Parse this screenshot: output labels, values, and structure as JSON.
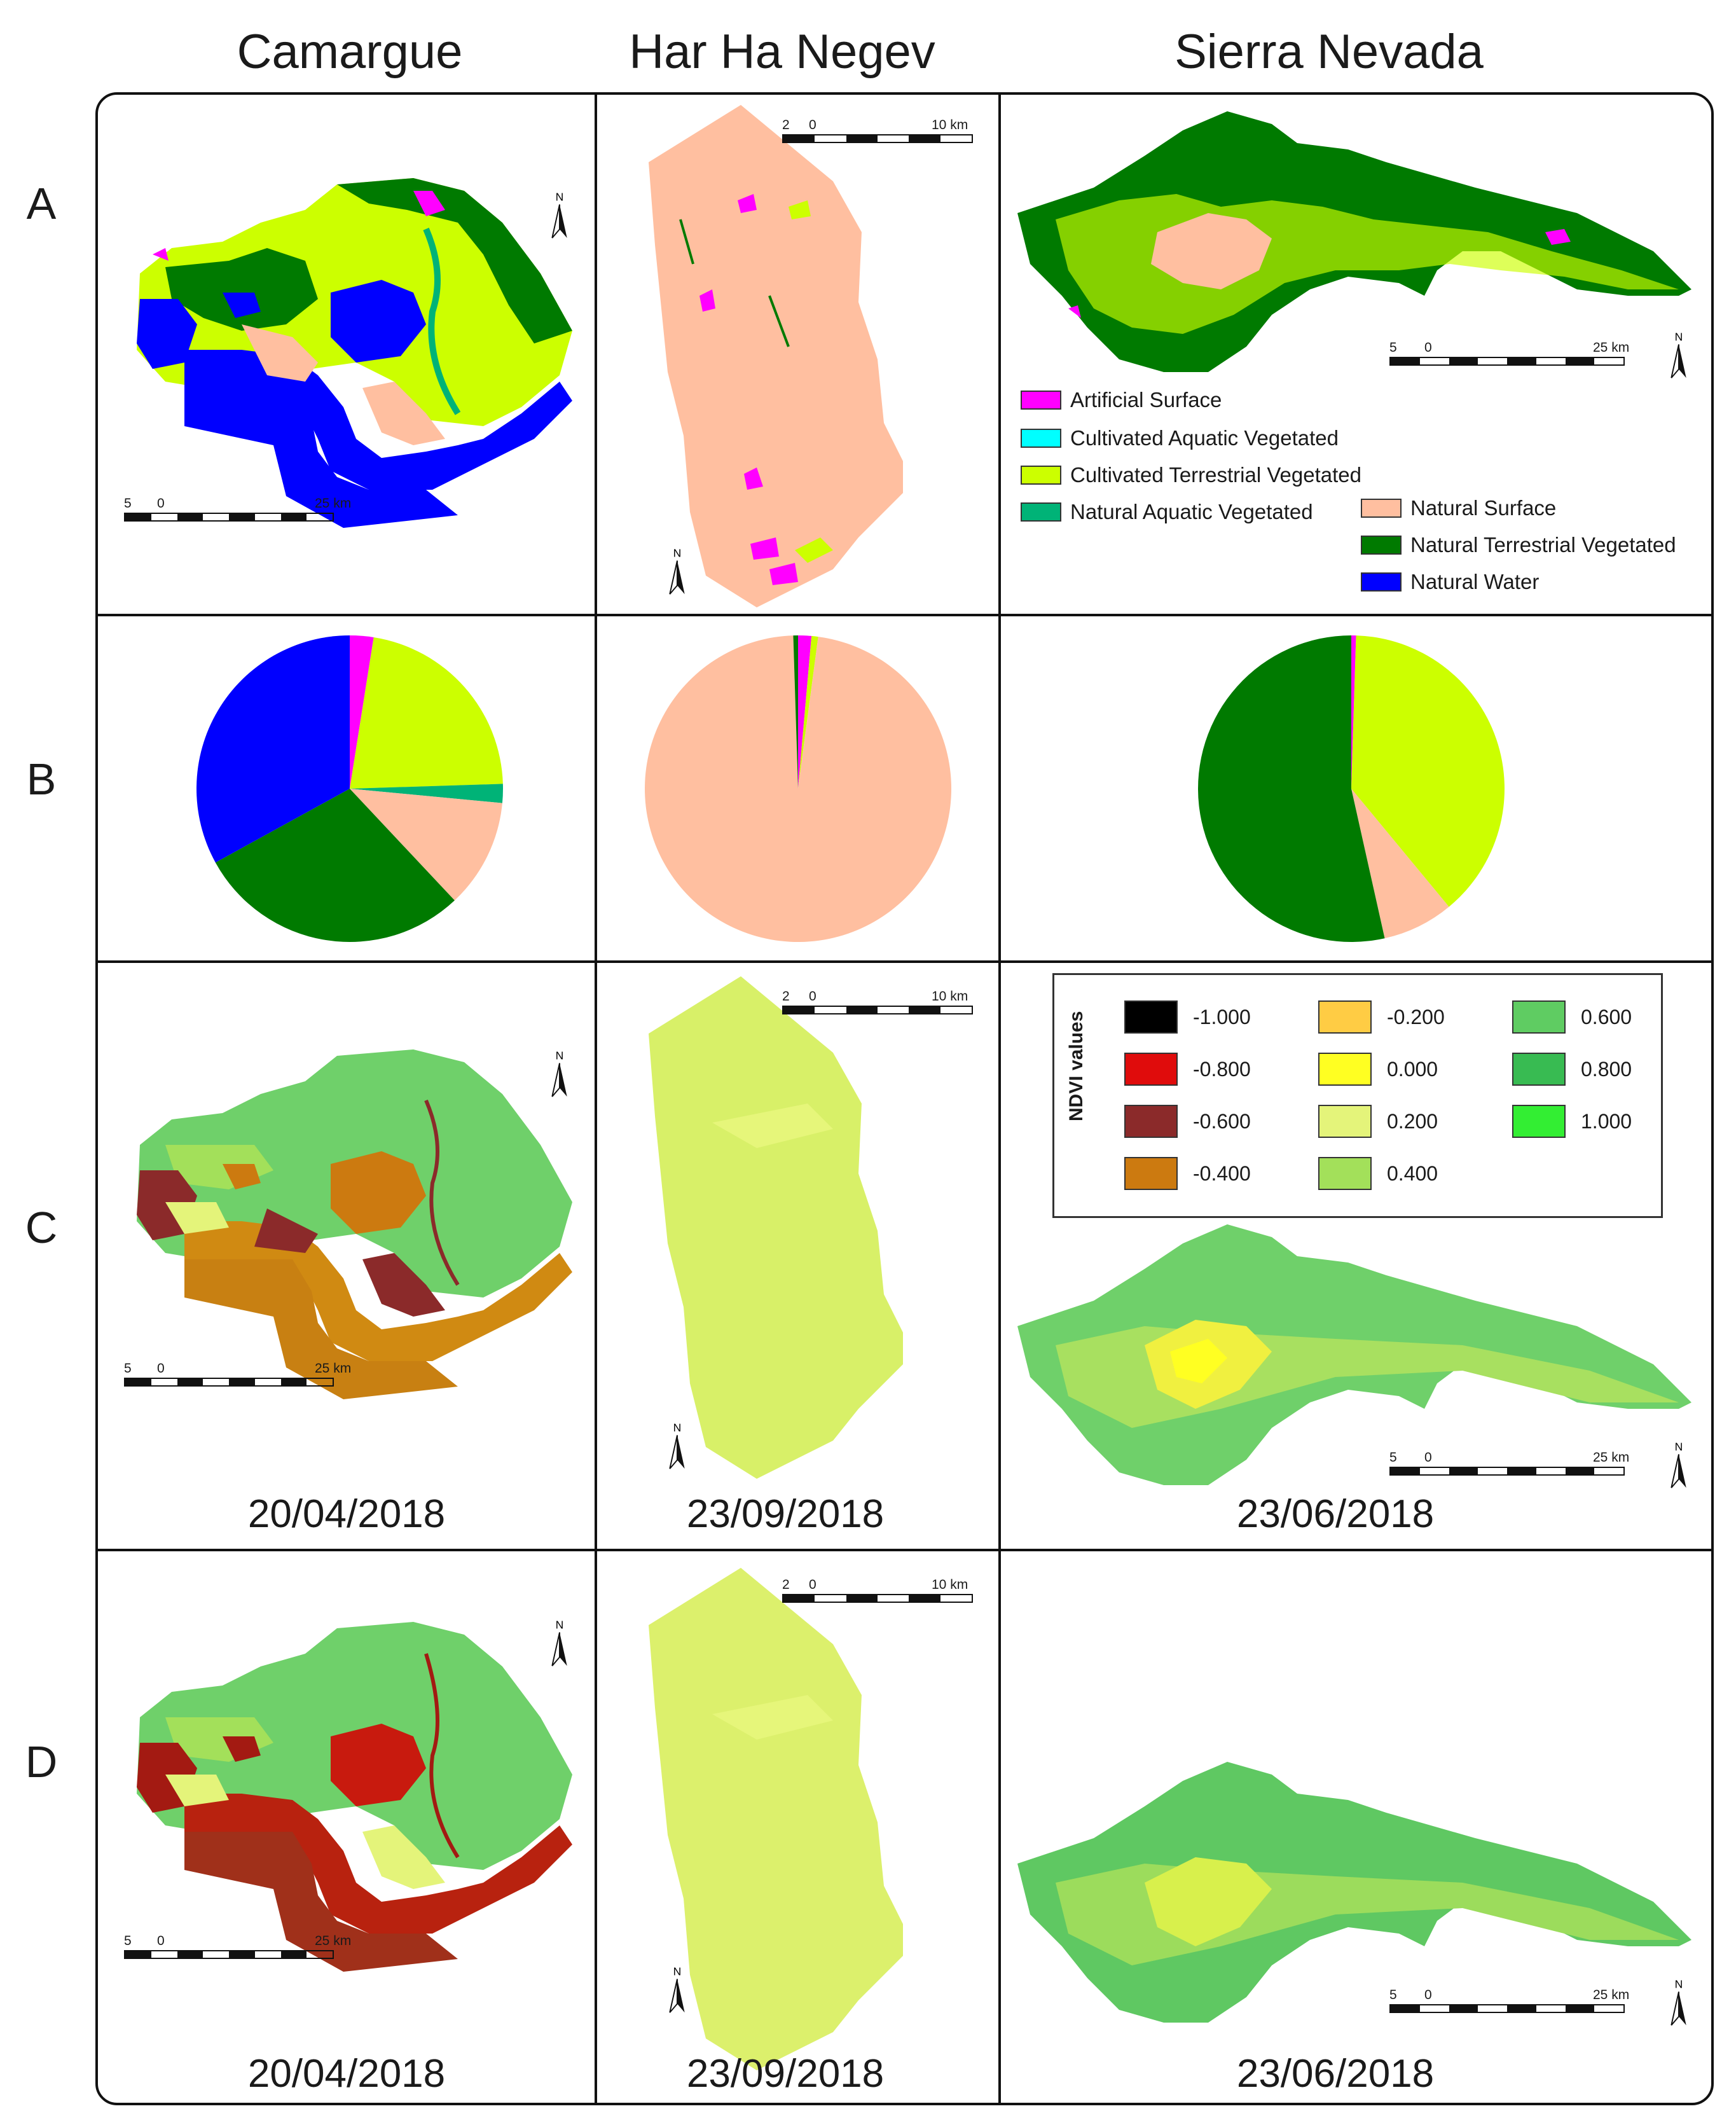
{
  "columns": [
    {
      "id": "camargue",
      "title": "Camargue"
    },
    {
      "id": "negev",
      "title": "Har Ha Negev"
    },
    {
      "id": "sierra",
      "title": "Sierra Nevada"
    }
  ],
  "rows": [
    "A",
    "B",
    "C",
    "D"
  ],
  "dates": {
    "camargue": "20/04/2018",
    "negev": "23/09/2018",
    "sierra": "23/06/2018"
  },
  "scalebars": {
    "camargue": {
      "left": "5",
      "zero": "0",
      "right": "25 km"
    },
    "negev": {
      "left": "2",
      "zero": "0",
      "right": "10 km"
    },
    "sierra": {
      "left": "5",
      "zero": "0",
      "right": "25 km"
    }
  },
  "north_label": "N",
  "colors": {
    "artificial_surface": "#ff00ff",
    "cultivated_aquatic": "#00ffff",
    "cultivated_terrestrial": "#ccff00",
    "natural_aquatic": "#00b377",
    "natural_surface": "#ffbfa0",
    "natural_terrestrial": "#007a00",
    "natural_water": "#0000ff"
  },
  "landcover_legend": [
    {
      "key": "artificial_surface",
      "label": "Artificial Surface"
    },
    {
      "key": "cultivated_aquatic",
      "label": "Cultivated Aquatic Vegetated"
    },
    {
      "key": "cultivated_terrestrial",
      "label": "Cultivated Terrestrial Vegetated"
    },
    {
      "key": "natural_aquatic",
      "label": "Natural Aquatic Vegetated"
    },
    {
      "key": "natural_surface",
      "label": "Natural Surface"
    },
    {
      "key": "natural_terrestrial",
      "label": "Natural Terrestrial Vegetated"
    },
    {
      "key": "natural_water",
      "label": "Natural Water"
    }
  ],
  "ndvi_legend": {
    "title": "NDVI values",
    "items": [
      {
        "label": "-1.000",
        "color": "#000000"
      },
      {
        "label": "-0.800",
        "color": "#e00c0c"
      },
      {
        "label": "-0.600",
        "color": "#8b2a2a"
      },
      {
        "label": "-0.400",
        "color": "#cc7a10"
      },
      {
        "label": "-0.200",
        "color": "#ffcc44"
      },
      {
        "label": "0.000",
        "color": "#ffff22"
      },
      {
        "label": "0.200",
        "color": "#e4f47a"
      },
      {
        "label": "0.400",
        "color": "#a3e05a"
      },
      {
        "label": "0.600",
        "color": "#5fcc62"
      },
      {
        "label": "0.800",
        "color": "#38bb52"
      },
      {
        "label": "1.000",
        "color": "#33ee33"
      }
    ]
  },
  "chart_data": [
    {
      "type": "pie",
      "site": "Camargue",
      "values": [
        {
          "key": "artificial_surface",
          "value": 2.5
        },
        {
          "key": "cultivated_terrestrial",
          "value": 22
        },
        {
          "key": "natural_aquatic",
          "value": 2
        },
        {
          "key": "natural_surface",
          "value": 11.5
        },
        {
          "key": "natural_terrestrial",
          "value": 29
        },
        {
          "key": "natural_water",
          "value": 33
        }
      ]
    },
    {
      "type": "pie",
      "site": "Har Ha Negev",
      "values": [
        {
          "key": "artificial_surface",
          "value": 1.4
        },
        {
          "key": "cultivated_terrestrial",
          "value": 0.7
        },
        {
          "key": "natural_surface",
          "value": 97.4
        },
        {
          "key": "natural_terrestrial",
          "value": 0.5
        }
      ]
    },
    {
      "type": "pie",
      "site": "Sierra Nevada",
      "values": [
        {
          "key": "artificial_surface",
          "value": 0.5
        },
        {
          "key": "cultivated_terrestrial",
          "value": 38.5
        },
        {
          "key": "natural_surface",
          "value": 7.5
        },
        {
          "key": "natural_terrestrial",
          "value": 53.5
        }
      ]
    }
  ]
}
